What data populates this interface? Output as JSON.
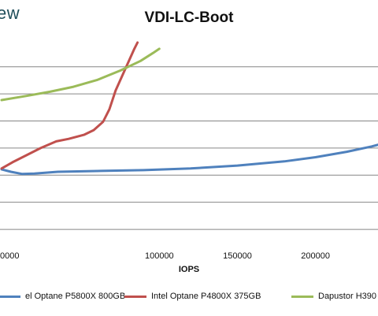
{
  "brand": {
    "text": "ew"
  },
  "chart_data": {
    "type": "line",
    "title": "VDI-LC-Boot",
    "xlabel": "IOPS",
    "ylabel": "",
    "xlim": [
      0,
      240000
    ],
    "ylim": [
      0,
      9.6
    ],
    "grid": true,
    "legend_position": "bottom",
    "x_ticks": [
      {
        "value": 0,
        "label": "0000"
      },
      {
        "value": 100000,
        "label": "100000"
      },
      {
        "value": 150000,
        "label": "150000"
      },
      {
        "value": 200000,
        "label": "200000"
      }
    ],
    "y_gridlines": [
      0.64,
      1.94,
      3.24,
      4.54,
      5.84,
      7.14,
      8.44
    ],
    "series": [
      {
        "name": "el Optane P5800X 800GB",
        "color": "#4f81bd",
        "points": [
          [
            -1000,
            3.52
          ],
          [
            5000,
            3.4
          ],
          [
            12000,
            3.3
          ],
          [
            20000,
            3.32
          ],
          [
            35000,
            3.4
          ],
          [
            60000,
            3.44
          ],
          [
            90000,
            3.48
          ],
          [
            120000,
            3.56
          ],
          [
            150000,
            3.7
          ],
          [
            180000,
            3.9
          ],
          [
            200000,
            4.1
          ],
          [
            220000,
            4.36
          ],
          [
            236000,
            4.62
          ],
          [
            242000,
            4.74
          ]
        ]
      },
      {
        "name": "Intel Optane P4800X 375GB",
        "color": "#c0504d",
        "points": [
          [
            -1000,
            3.56
          ],
          [
            6000,
            3.86
          ],
          [
            14000,
            4.16
          ],
          [
            24000,
            4.54
          ],
          [
            34000,
            4.86
          ],
          [
            42000,
            4.98
          ],
          [
            52000,
            5.18
          ],
          [
            58000,
            5.4
          ],
          [
            64000,
            5.8
          ],
          [
            68000,
            6.4
          ],
          [
            72000,
            7.3
          ],
          [
            78000,
            8.3
          ],
          [
            84000,
            9.3
          ],
          [
            86000,
            9.6
          ]
        ]
      },
      {
        "name": "Dapustor H390",
        "color": "#9bbb59",
        "points": [
          [
            -1000,
            6.84
          ],
          [
            15000,
            7.04
          ],
          [
            30000,
            7.24
          ],
          [
            45000,
            7.48
          ],
          [
            60000,
            7.8
          ],
          [
            75000,
            8.26
          ],
          [
            88000,
            8.72
          ],
          [
            96000,
            9.1
          ],
          [
            100000,
            9.3
          ]
        ]
      }
    ]
  }
}
